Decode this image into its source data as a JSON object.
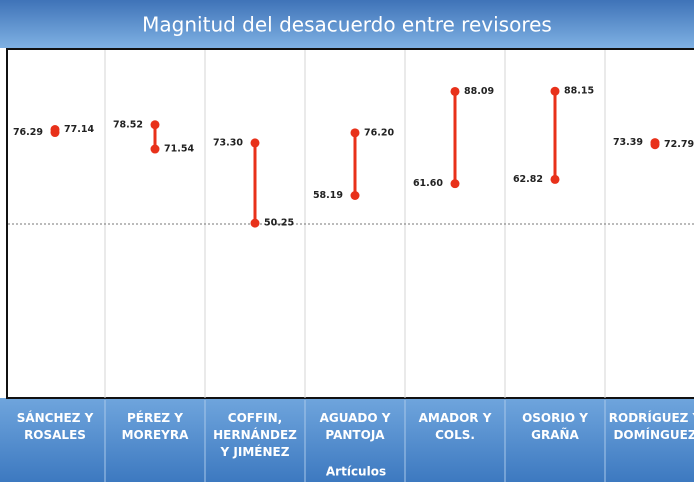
{
  "chart_data": {
    "type": "dumbbell",
    "title": "Magnitud del desacuerdo entre revisores",
    "x_label": "Artículos",
    "categories": [
      "SÁNCHEZ Y ROSALES",
      "PÉREZ Y MOREYRA",
      "COFFIN, HERNÁNDEZ Y JIMÉNEZ",
      "AGUADO Y PANTOJA",
      "AMADOR Y COLS.",
      "OSORIO Y GRAÑA",
      "RODRÍGUEZ Y DOMÍNGUEZ"
    ],
    "series": [
      {
        "color": "#e8311a",
        "values": [
          76.29,
          78.52,
          73.3,
          58.19,
          61.6,
          62.82,
          73.39
        ],
        "value_labels": [
          "76.29",
          "78.52",
          "73.30",
          "58.19",
          "61.60",
          "62.82",
          "73.39"
        ]
      },
      {
        "color": "#e8311a",
        "values": [
          77.14,
          71.54,
          50.25,
          76.2,
          88.09,
          88.15,
          72.79
        ],
        "value_labels": [
          "77.14",
          "71.54",
          "50.25",
          "76.20",
          "88.09",
          "88.15",
          "72.79"
        ]
      }
    ],
    "ylim": [
      0,
      100
    ],
    "grid_lines": [
      50
    ]
  }
}
